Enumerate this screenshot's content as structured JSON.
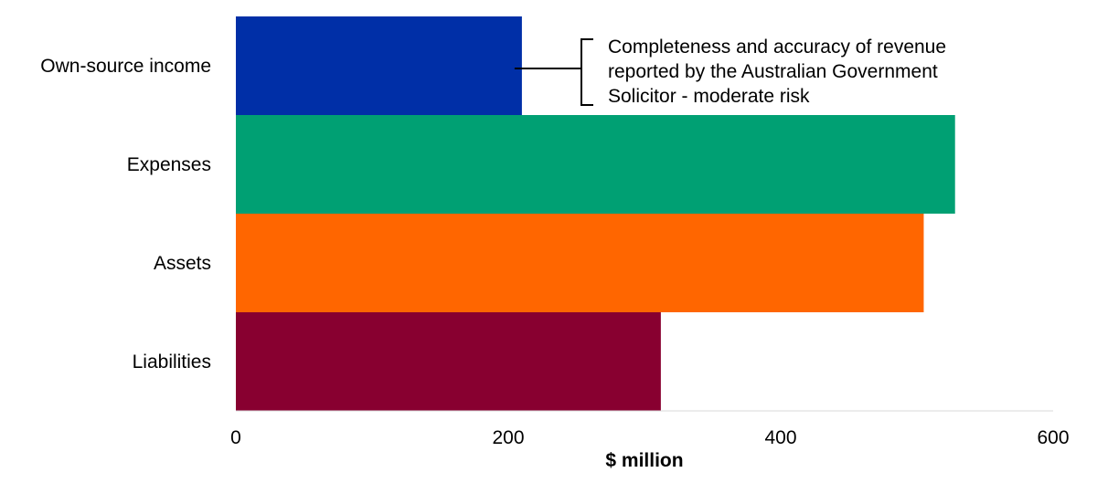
{
  "chart_data": {
    "type": "bar",
    "orientation": "horizontal",
    "categories": [
      "Own-source income",
      "Expenses",
      "Assets",
      "Liabilities"
    ],
    "values": [
      210,
      528,
      505,
      312
    ],
    "colors": [
      "#002FA7",
      "#00A073",
      "#FF6600",
      "#880030"
    ],
    "xlabel": "$ million",
    "xlim": [
      0,
      600
    ],
    "xticks": [
      0,
      200,
      400,
      600
    ],
    "grid": false,
    "annotation": {
      "category": "Own-source income",
      "lines": [
        "Completeness and accuracy of revenue",
        "reported by the Australian Government",
        "Solicitor - moderate risk"
      ]
    }
  }
}
